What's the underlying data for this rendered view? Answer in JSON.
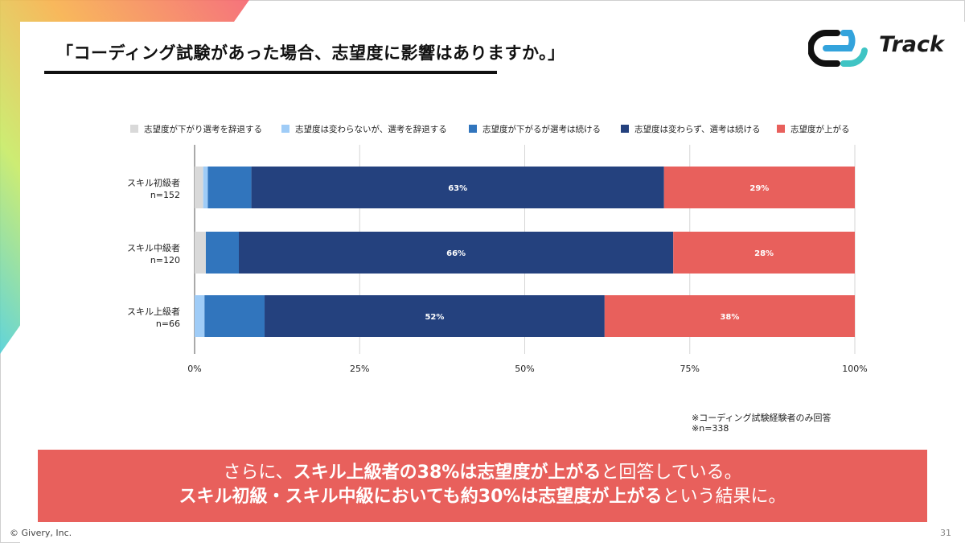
{
  "title": "「コーディング試験があった場合、志望度に影響はありますか。」",
  "logo": {
    "text": "Track"
  },
  "colors": {
    "withdraw_down": "#d9d9d9",
    "withdraw_same": "#9fccf7",
    "continue_down": "#3175bd",
    "continue_same": "#24417e",
    "up": "#e8605c",
    "banner": "#e8605c"
  },
  "chart_data": {
    "type": "bar",
    "orientation": "horizontal",
    "stacked": true,
    "percent": true,
    "categories": [
      "スキル初級者",
      "スキル中級者",
      "スキル上級者"
    ],
    "category_notes": [
      "n=152",
      "n=120",
      "n=66"
    ],
    "series": [
      {
        "name": "志望度が下がり選考を辞退する",
        "values": [
          1.3,
          1.7,
          0.0
        ]
      },
      {
        "name": "志望度は変わらないが、選考を辞退する",
        "values": [
          0.7,
          0.0,
          1.5
        ]
      },
      {
        "name": "志望度が下がるが選考は続ける",
        "values": [
          6.6,
          5.0,
          9.1
        ]
      },
      {
        "name": "志望度は変わらず、選考は続ける",
        "values": [
          62.5,
          65.8,
          51.5
        ]
      },
      {
        "name": "志望度が上がる",
        "values": [
          28.9,
          27.5,
          37.9
        ]
      }
    ],
    "data_labels": [
      [
        "",
        "",
        "",
        "63%",
        "29%"
      ],
      [
        "",
        "",
        "",
        "66%",
        "28%"
      ],
      [
        "",
        "",
        "",
        "52%",
        "38%"
      ]
    ],
    "x_ticks": [
      "0%",
      "25%",
      "50%",
      "75%",
      "100%"
    ],
    "xlim": [
      0,
      100
    ],
    "grid": true,
    "legend_position": "top"
  },
  "footnotes": [
    "※コーディング試験経験者のみ回答",
    "※n=338"
  ],
  "banner": {
    "line1": [
      {
        "text": "さらに、",
        "bold": false
      },
      {
        "text": "スキル上級者の38%は志望度が上がる",
        "bold": true
      },
      {
        "text": "と回答している。",
        "bold": false
      }
    ],
    "line2": [
      {
        "text": "スキル初級・スキル中級においても約30%は志望度が上がる",
        "bold": true
      },
      {
        "text": "という結果に。",
        "bold": false
      }
    ]
  },
  "copyright": "© Givery, Inc.",
  "page_number": "31"
}
